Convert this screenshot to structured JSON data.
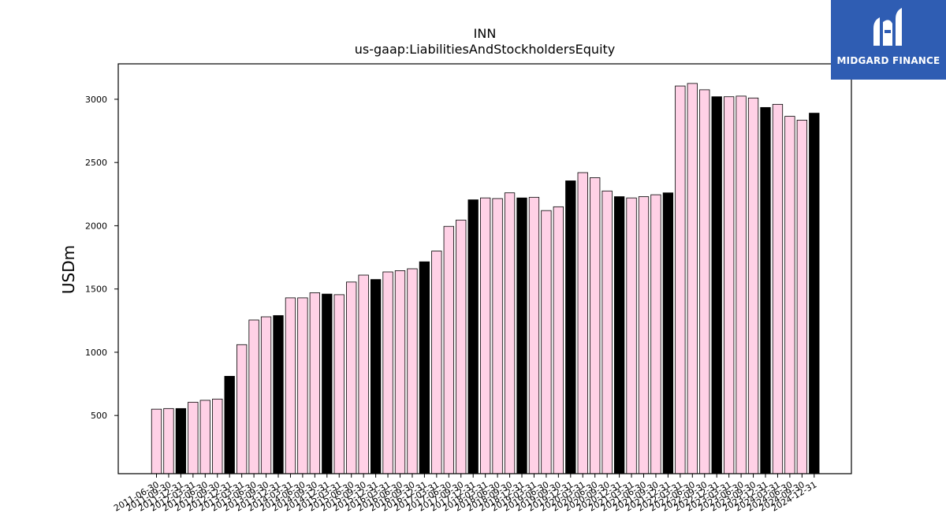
{
  "chart_data": {
    "type": "bar",
    "title": "INN",
    "subtitle": "us-gaap:LiabilitiesAndStockholdersEquity",
    "xlabel": "",
    "ylabel": "USDm",
    "ylim": [
      40,
      3280
    ],
    "yticks": [
      500,
      1000,
      1500,
      2000,
      2500,
      3000
    ],
    "grid": false,
    "colors": {
      "normal": "#ffd1e6",
      "highlight": "#000000",
      "edge": "#000000"
    },
    "categories": [
      "2011-06-30",
      "2011-09-30",
      "2011-12-31",
      "2012-03-31",
      "2012-06-30",
      "2012-09-30",
      "2012-12-31",
      "2013-03-31",
      "2013-06-30",
      "2013-09-30",
      "2013-12-31",
      "2014-03-31",
      "2014-06-30",
      "2014-09-30",
      "2014-12-31",
      "2015-03-31",
      "2015-06-30",
      "2015-09-30",
      "2015-12-31",
      "2016-03-31",
      "2016-06-30",
      "2016-09-30",
      "2016-12-31",
      "2017-03-31",
      "2017-06-30",
      "2017-09-30",
      "2017-12-31",
      "2018-03-31",
      "2018-06-30",
      "2018-09-30",
      "2018-12-31",
      "2019-03-31",
      "2019-06-30",
      "2019-09-30",
      "2019-12-31",
      "2020-03-31",
      "2020-06-30",
      "2020-09-30",
      "2020-12-31",
      "2021-03-31",
      "2021-06-30",
      "2021-09-30",
      "2021-12-31",
      "2022-03-31",
      "2022-06-30",
      "2022-09-30",
      "2022-12-31",
      "2023-03-31",
      "2023-06-30",
      "2023-09-30",
      "2023-12-31",
      "2024-03-31",
      "2024-06-30",
      "2024-09-30",
      "2024-12-31"
    ],
    "values": [
      550,
      555,
      555,
      605,
      620,
      630,
      810,
      1060,
      1255,
      1280,
      1290,
      1430,
      1430,
      1470,
      1460,
      1455,
      1555,
      1610,
      1575,
      1635,
      1645,
      1660,
      1715,
      1800,
      1995,
      2045,
      2205,
      2220,
      2215,
      2260,
      2220,
      2225,
      2120,
      2150,
      2355,
      2420,
      2380,
      2275,
      2230,
      2220,
      2230,
      2245,
      2260,
      3105,
      3125,
      3075,
      3020,
      3020,
      3025,
      3010,
      2935,
      2960,
      2865,
      2835,
      2890
    ],
    "highlighted": [
      "2011-12-31",
      "2012-12-31",
      "2013-12-31",
      "2014-12-31",
      "2015-12-31",
      "2016-12-31",
      "2017-12-31",
      "2018-12-31",
      "2019-12-31",
      "2020-12-31",
      "2021-12-31",
      "2022-12-31",
      "2023-12-31",
      "2024-12-31"
    ]
  },
  "logo": {
    "text": "MIDGARD FINANCE",
    "icon": "midgard-logo-icon",
    "color": "#2f5db3"
  }
}
